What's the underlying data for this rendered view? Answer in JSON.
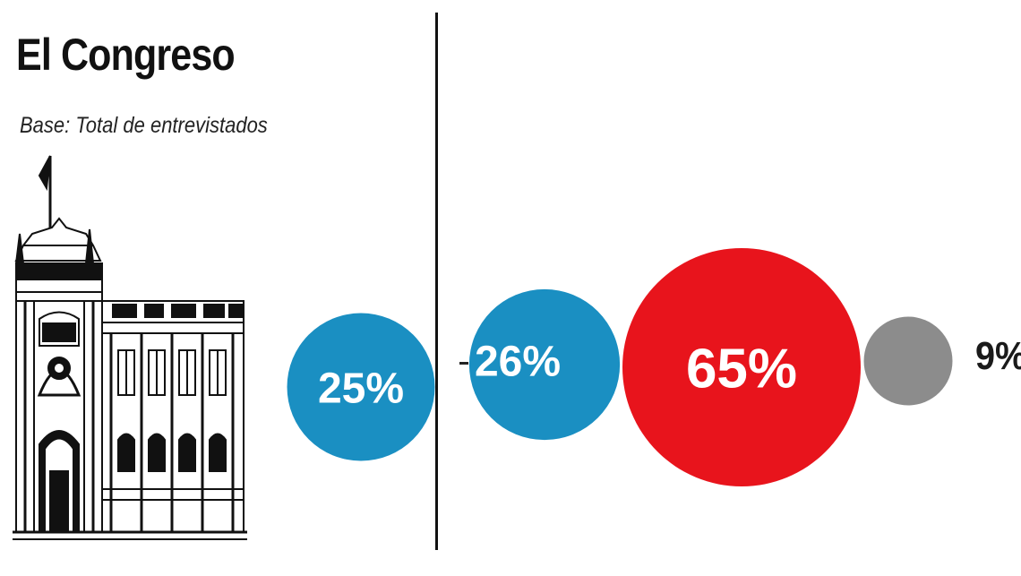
{
  "chart_data": [
    {
      "type": "bubble",
      "title": "El Congreso",
      "subtitle": "Base: Total de entrevistados",
      "series": [
        {
          "value": 25,
          "label": "25%",
          "color": "#1a8fc2"
        }
      ]
    },
    {
      "type": "bubble",
      "series": [
        {
          "value": 26,
          "label": "26%",
          "color": "#1a8fc2"
        },
        {
          "value": 65,
          "label": "65%",
          "color": "#e8141c"
        },
        {
          "value": 9,
          "label": "9%",
          "color": "#8c8c8c"
        }
      ]
    }
  ],
  "icons": {
    "building": "congress-building-icon"
  }
}
